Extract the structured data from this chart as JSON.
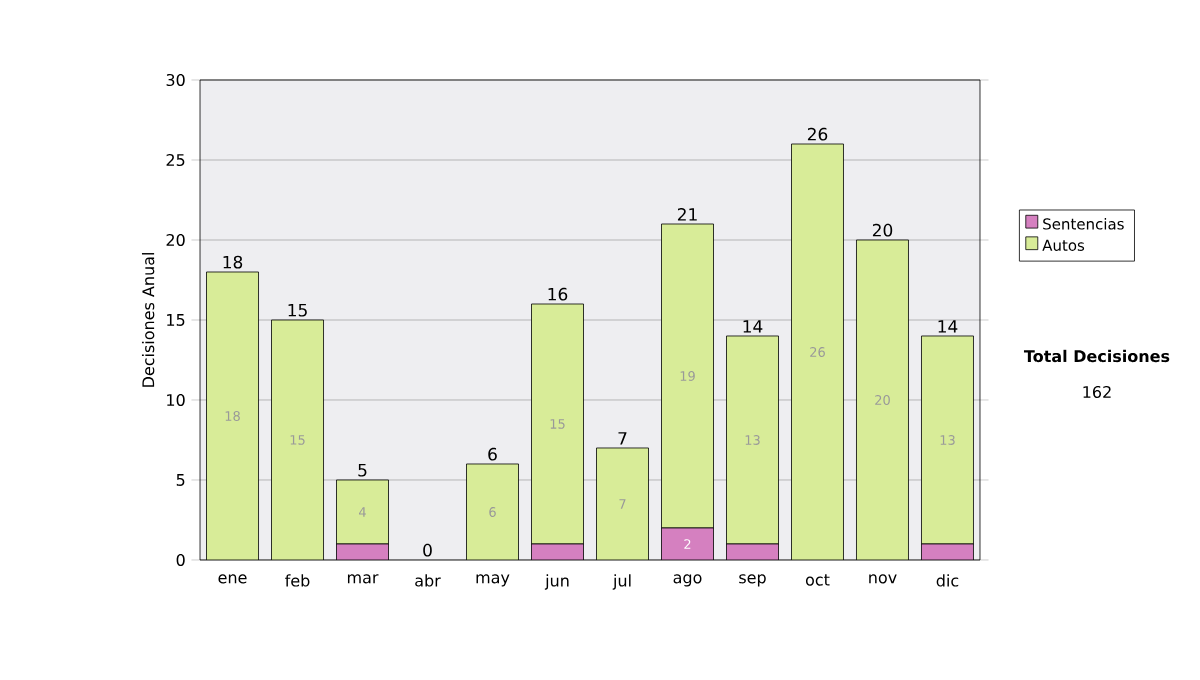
{
  "chart_data": {
    "type": "bar",
    "stacked": true,
    "ylabel": "Decisiones Anual",
    "categories": [
      "ene",
      "feb",
      "mar",
      "abr",
      "may",
      "jun",
      "jul",
      "ago",
      "sep",
      "oct",
      "nov",
      "dic"
    ],
    "series": [
      {
        "name": "Sentencias",
        "color": "#d580c0",
        "values": [
          0,
          0,
          1,
          0,
          0,
          1,
          0,
          2,
          1,
          0,
          0,
          1
        ],
        "value_labels": [
          null,
          null,
          null,
          null,
          null,
          null,
          null,
          "2",
          null,
          null,
          null,
          null
        ]
      },
      {
        "name": "Autos",
        "color": "#d8ec98",
        "values": [
          18,
          15,
          4,
          0,
          6,
          15,
          7,
          19,
          13,
          26,
          20,
          13
        ],
        "value_labels": [
          "18",
          "15",
          "4",
          null,
          "6",
          "15",
          "7",
          "19",
          "13",
          "26",
          "20",
          "13"
        ]
      }
    ],
    "totals": [
      "18",
      "15",
      "5",
      "0",
      "6",
      "16",
      "7",
      "21",
      "14",
      "26",
      "20",
      "14"
    ],
    "ylim": [
      0,
      30
    ],
    "yticks": [
      0,
      5,
      10,
      15,
      20,
      25,
      30
    ],
    "grid": "y",
    "legend": "right",
    "annotations": [
      "**Total Decisiones**",
      "162"
    ]
  }
}
